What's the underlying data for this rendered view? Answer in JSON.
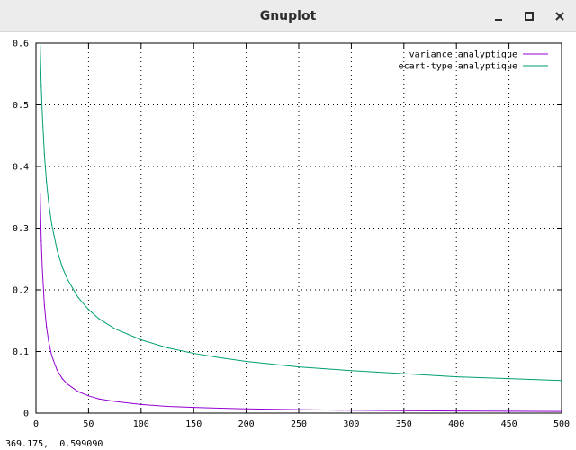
{
  "window": {
    "title": "Gnuplot",
    "minimize_icon": "minimize-icon",
    "maximize_icon": "maximize-icon",
    "close_icon": "close-icon"
  },
  "status_bar": {
    "coordinates": "369.175,  0.599090"
  },
  "chart_data": {
    "type": "line",
    "title": "",
    "xlabel": "",
    "ylabel": "",
    "xlim": [
      0,
      500
    ],
    "ylim": [
      0,
      0.6
    ],
    "x_ticks": [
      "0",
      "50",
      "100",
      "150",
      "200",
      "250",
      "300",
      "350",
      "400",
      "450",
      "500"
    ],
    "y_ticks": [
      "0",
      "0.1",
      "0.2",
      "0.3",
      "0.4",
      "0.5",
      "0.6"
    ],
    "grid": true,
    "grid_style": "dotted",
    "legend_position": "top-right",
    "series": [
      {
        "name": "variance analyptique",
        "color": "#9400d3",
        "x": [
          4,
          5,
          6,
          8,
          10,
          12,
          15,
          20,
          25,
          30,
          40,
          50,
          60,
          75,
          100,
          125,
          150,
          175,
          200,
          250,
          300,
          350,
          400,
          450,
          500
        ],
        "y": [
          0.355,
          0.28,
          0.235,
          0.175,
          0.14,
          0.117,
          0.093,
          0.07,
          0.056,
          0.047,
          0.035,
          0.028,
          0.023,
          0.019,
          0.014,
          0.011,
          0.0093,
          0.008,
          0.007,
          0.0056,
          0.0047,
          0.004,
          0.0035,
          0.0031,
          0.0028
        ]
      },
      {
        "name": "ecart-type analyptique",
        "color": "#009e73",
        "x": [
          4,
          5,
          6,
          8,
          10,
          12,
          15,
          20,
          25,
          30,
          40,
          50,
          60,
          75,
          100,
          125,
          150,
          175,
          200,
          250,
          300,
          350,
          400,
          450,
          500
        ],
        "y": [
          0.596,
          0.53,
          0.485,
          0.42,
          0.375,
          0.342,
          0.306,
          0.265,
          0.237,
          0.217,
          0.188,
          0.168,
          0.153,
          0.137,
          0.119,
          0.106,
          0.097,
          0.09,
          0.084,
          0.075,
          0.069,
          0.064,
          0.059,
          0.056,
          0.053
        ]
      }
    ]
  }
}
